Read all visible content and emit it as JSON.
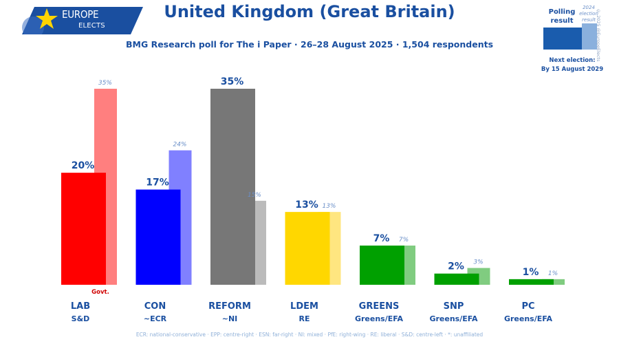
{
  "logo": {
    "line1": "EUROPE",
    "line2": "ELECTS"
  },
  "header": {
    "title": "United Kingdom (Great Britain)",
    "subtitle": "BMG Research poll for The i Paper · 26–28 August 2025 · 1,504 respondents"
  },
  "legend": {
    "poll_label": "Polling result",
    "election_label": "2024 election result",
    "next_election": "Next election:",
    "next_election_date": "By 15 August 2029",
    "copyright": "© 2025 @EuropeElects"
  },
  "footnote": "ECR: national-conservative · EPP: centre-right · ESN: far-right · NI: mixed · PfE: right-wing · RE: liberal · S&D: centre-left · *: unaffiliated",
  "colors": {
    "title": "#1a4fa0",
    "legend_poll": "#1a5cad",
    "legend_election": "#8ab0dd"
  },
  "chart_data": {
    "type": "bar",
    "categories": [
      "LAB",
      "CON",
      "REFORM",
      "LDEM",
      "GREENS",
      "SNP",
      "PC"
    ],
    "groups": [
      "S&D",
      "~ECR",
      "~NI",
      "RE",
      "Greens/EFA",
      "Greens/EFA",
      "Greens/EFA"
    ],
    "series": [
      {
        "name": "Polling result",
        "values": [
          20,
          17,
          35,
          13,
          7,
          2,
          1
        ],
        "labels": [
          "20%",
          "17%",
          "35%",
          "13%",
          "7%",
          "2%",
          "1%"
        ]
      },
      {
        "name": "2024 election result",
        "values": [
          35,
          24,
          15,
          13,
          7,
          3,
          1
        ],
        "labels": [
          "35%",
          "24%",
          "15%",
          "13%",
          "7%",
          "3%",
          "1%"
        ]
      }
    ],
    "colors": [
      "#ff0000",
      "#0000ff",
      "#777777",
      "#ffd700",
      "#00a000",
      "#00a000",
      "#00a000"
    ],
    "prev_colors": [
      "#ff7f7f",
      "#8080ff",
      "#bbbbbb",
      "#ffe680",
      "#80cc80",
      "#80cc80",
      "#80cc80"
    ],
    "govt_label": "Govt.",
    "govt_index": 0,
    "ylim": [
      0,
      35
    ]
  }
}
